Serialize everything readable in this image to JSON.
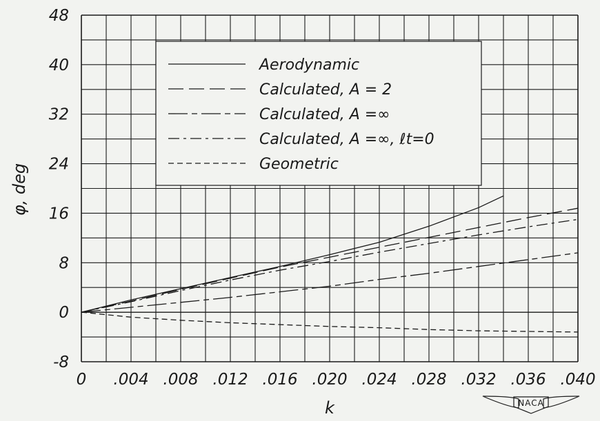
{
  "chart_data": {
    "type": "line",
    "xlabel": "k",
    "ylabel": "φ, deg",
    "xlim": [
      0,
      0.04
    ],
    "ylim": [
      -8,
      48
    ],
    "x_ticks": [
      0,
      0.004,
      0.008,
      0.012,
      0.016,
      0.02,
      0.024,
      0.028,
      0.032,
      0.036,
      0.04
    ],
    "x_tick_labels": [
      "0",
      ".004",
      ".008",
      ".012",
      ".016",
      ".020",
      ".024",
      ".028",
      ".032",
      ".036",
      ".040"
    ],
    "y_ticks": [
      -8,
      0,
      8,
      16,
      24,
      32,
      40,
      48
    ],
    "y_tick_labels": [
      "-8",
      "0",
      "8",
      "16",
      "24",
      "32",
      "40",
      "48"
    ],
    "grid": true,
    "legend_position": "top-left",
    "series": [
      {
        "name": "Aerodynamic",
        "dash": "solid",
        "x": [
          0,
          0.004,
          0.008,
          0.012,
          0.016,
          0.02,
          0.024,
          0.028,
          0.032,
          0.034
        ],
        "y": [
          0,
          2.0,
          3.8,
          5.6,
          7.4,
          9.3,
          11.3,
          13.9,
          16.9,
          18.8
        ]
      },
      {
        "name": "Calculated, A = 2",
        "dash": "long",
        "x": [
          0,
          0.004,
          0.008,
          0.012,
          0.016,
          0.02,
          0.024,
          0.028,
          0.032,
          0.036,
          0.04
        ],
        "y": [
          0,
          1.8,
          3.7,
          5.5,
          7.3,
          8.9,
          10.5,
          12.1,
          13.7,
          15.3,
          16.8
        ]
      },
      {
        "name": "Calculated, A =∞",
        "dash": "long-short",
        "x": [
          0,
          0.004,
          0.008,
          0.012,
          0.016,
          0.02,
          0.024,
          0.028,
          0.032,
          0.036,
          0.04
        ],
        "y": [
          0,
          0.8,
          1.6,
          2.4,
          3.3,
          4.2,
          5.3,
          6.3,
          7.4,
          8.5,
          9.6
        ]
      },
      {
        "name": "Calculated, A =∞, ℓt=0",
        "dash": "dash-dot",
        "x": [
          0,
          0.004,
          0.008,
          0.012,
          0.016,
          0.02,
          0.024,
          0.028,
          0.032,
          0.036,
          0.04
        ],
        "y": [
          0,
          1.7,
          3.5,
          5.2,
          6.8,
          8.2,
          9.7,
          11.1,
          12.5,
          13.8,
          15.0
        ]
      },
      {
        "name": "Geometric",
        "dash": "short",
        "x": [
          0,
          0.004,
          0.008,
          0.012,
          0.016,
          0.02,
          0.024,
          0.028,
          0.032,
          0.036,
          0.04
        ],
        "y": [
          0,
          -0.8,
          -1.3,
          -1.7,
          -2.0,
          -2.3,
          -2.5,
          -2.8,
          -3.0,
          -3.1,
          -3.2
        ]
      },
      {
        "name": "",
        "dash": "solid",
        "x": [
          0,
          0.04
        ],
        "y": [
          0,
          0
        ]
      }
    ]
  },
  "logo": {
    "text": "NACA"
  },
  "colors": {
    "ink": "#1a1a1a",
    "paper": "#f2f3f0"
  }
}
